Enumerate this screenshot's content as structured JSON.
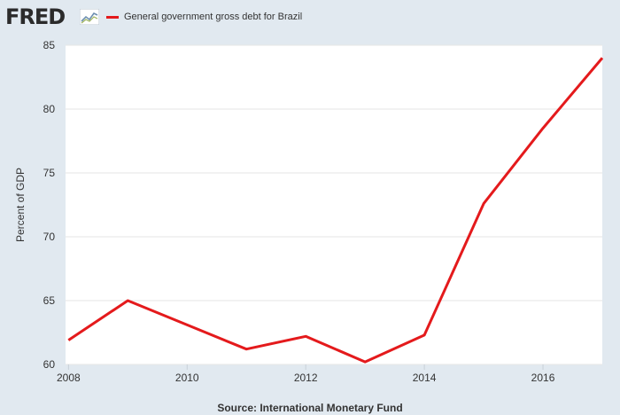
{
  "brand": {
    "logo_text": "FRED",
    "icon": "fred-line-graph-icon"
  },
  "legend": {
    "series_label": "General government gross debt for Brazil",
    "color": "#e41a1c"
  },
  "source_text": "Source: International Monetary Fund",
  "chart_data": {
    "type": "line",
    "title": "",
    "xlabel": "",
    "ylabel": "Percent of GDP",
    "xlim": [
      2007.95,
      2017.0
    ],
    "ylim": [
      60,
      85
    ],
    "x_ticks": [
      2008,
      2010,
      2012,
      2014,
      2016
    ],
    "y_ticks": [
      60,
      65,
      70,
      75,
      80,
      85
    ],
    "grid": true,
    "legend_position": "top-left",
    "series": [
      {
        "name": "General government gross debt for Brazil",
        "color": "#e41a1c",
        "x": [
          2008,
          2009,
          2010,
          2011,
          2012,
          2013,
          2014,
          2015,
          2016,
          2017
        ],
        "y": [
          61.9,
          65.0,
          63.1,
          61.2,
          62.2,
          60.2,
          62.3,
          72.6,
          78.5,
          84.0
        ]
      }
    ]
  }
}
